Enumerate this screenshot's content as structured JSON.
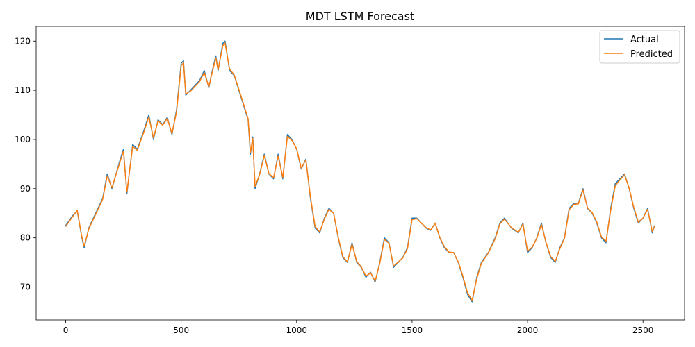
{
  "chart_data": {
    "type": "line",
    "title": "MDT LSTM Forecast",
    "xlabel": "",
    "ylabel": "",
    "xlim": [
      -128,
      2680
    ],
    "ylim": [
      63.3,
      123
    ],
    "x_ticks": [
      0,
      500,
      1000,
      1500,
      2000,
      2500
    ],
    "y_ticks": [
      70,
      80,
      90,
      100,
      110,
      120
    ],
    "grid": false,
    "legend_position": "top-right",
    "series": [
      {
        "name": "Actual",
        "color": "#1f77b4",
        "x": [
          0,
          30,
          50,
          70,
          80,
          100,
          130,
          160,
          180,
          200,
          230,
          250,
          265,
          290,
          310,
          340,
          360,
          380,
          400,
          420,
          440,
          460,
          480,
          500,
          510,
          520,
          540,
          560,
          580,
          600,
          620,
          630,
          650,
          660,
          680,
          690,
          710,
          730,
          750,
          770,
          790,
          800,
          810,
          820,
          840,
          860,
          880,
          900,
          920,
          940,
          960,
          980,
          1000,
          1020,
          1040,
          1060,
          1080,
          1100,
          1120,
          1140,
          1160,
          1180,
          1200,
          1220,
          1240,
          1260,
          1280,
          1300,
          1320,
          1340,
          1360,
          1380,
          1400,
          1420,
          1440,
          1460,
          1480,
          1500,
          1520,
          1540,
          1560,
          1580,
          1600,
          1620,
          1640,
          1660,
          1680,
          1700,
          1720,
          1740,
          1760,
          1780,
          1800,
          1830,
          1860,
          1880,
          1900,
          1930,
          1960,
          1980,
          2000,
          2020,
          2040,
          2060,
          2080,
          2100,
          2120,
          2140,
          2160,
          2180,
          2200,
          2220,
          2240,
          2260,
          2280,
          2300,
          2320,
          2340,
          2360,
          2380,
          2400,
          2420,
          2440,
          2460,
          2480,
          2500,
          2520,
          2540,
          2550
        ],
        "y": [
          82.5,
          84.5,
          85.5,
          80.0,
          78.0,
          82.0,
          85.0,
          88.0,
          93.0,
          90.0,
          95.0,
          98.0,
          89.0,
          99.0,
          98.0,
          102.0,
          105.0,
          100.0,
          104.0,
          103.0,
          104.5,
          101.0,
          106.0,
          115.5,
          116.0,
          109.0,
          110.0,
          111.0,
          112.0,
          114.0,
          110.5,
          113.0,
          117.0,
          114.0,
          119.5,
          120.0,
          114.0,
          113.0,
          110.0,
          107.0,
          104.0,
          97.0,
          100.5,
          90.0,
          93.0,
          97.0,
          93.0,
          92.0,
          97.0,
          92.0,
          101.0,
          100.0,
          98.0,
          94.0,
          96.0,
          88.0,
          82.0,
          81.0,
          84.0,
          86.0,
          85.0,
          80.0,
          76.0,
          75.0,
          79.0,
          75.0,
          74.0,
          72.0,
          73.0,
          71.0,
          75.0,
          80.0,
          79.0,
          74.0,
          75.0,
          76.0,
          78.0,
          84.0,
          84.0,
          83.0,
          82.0,
          81.5,
          83.0,
          80.0,
          78.0,
          77.0,
          77.0,
          75.0,
          72.0,
          68.5,
          67.0,
          72.0,
          75.0,
          77.0,
          80.0,
          83.0,
          84.0,
          82.0,
          81.0,
          83.0,
          77.0,
          78.0,
          80.0,
          83.0,
          79.0,
          76.0,
          75.0,
          78.0,
          80.0,
          86.0,
          87.0,
          87.0,
          90.0,
          86.0,
          85.0,
          83.0,
          80.0,
          79.0,
          86.0,
          91.0,
          92.0,
          93.0,
          90.0,
          86.0,
          83.0,
          84.0,
          86.0,
          81.0,
          82.5
        ]
      },
      {
        "name": "Predicted",
        "color": "#ff7f0e",
        "x": [
          0,
          30,
          50,
          70,
          80,
          100,
          130,
          160,
          180,
          200,
          230,
          250,
          265,
          290,
          310,
          340,
          360,
          380,
          400,
          420,
          440,
          460,
          480,
          500,
          510,
          520,
          540,
          560,
          580,
          600,
          620,
          630,
          650,
          660,
          680,
          690,
          710,
          730,
          750,
          770,
          790,
          800,
          810,
          820,
          840,
          860,
          880,
          900,
          920,
          940,
          960,
          980,
          1000,
          1020,
          1040,
          1060,
          1080,
          1100,
          1120,
          1140,
          1160,
          1180,
          1200,
          1220,
          1240,
          1260,
          1280,
          1300,
          1320,
          1340,
          1360,
          1380,
          1400,
          1420,
          1440,
          1460,
          1480,
          1500,
          1520,
          1540,
          1560,
          1580,
          1600,
          1620,
          1640,
          1660,
          1680,
          1700,
          1720,
          1740,
          1760,
          1780,
          1800,
          1830,
          1860,
          1880,
          1900,
          1930,
          1960,
          1980,
          2000,
          2020,
          2040,
          2060,
          2080,
          2100,
          2120,
          2140,
          2160,
          2180,
          2200,
          2220,
          2240,
          2260,
          2280,
          2300,
          2320,
          2340,
          2360,
          2380,
          2400,
          2420,
          2440,
          2460,
          2480,
          2500,
          2520,
          2540,
          2550
        ],
        "y": [
          82.3,
          84.3,
          85.6,
          80.2,
          78.3,
          81.8,
          84.8,
          87.8,
          92.6,
          90.2,
          94.7,
          97.6,
          89.3,
          98.6,
          97.8,
          101.7,
          104.6,
          100.3,
          103.8,
          102.9,
          104.3,
          101.2,
          105.6,
          115.0,
          115.6,
          109.3,
          109.8,
          110.8,
          111.8,
          113.6,
          110.7,
          112.8,
          116.6,
          114.2,
          119.0,
          119.6,
          114.3,
          113.1,
          110.2,
          107.2,
          104.2,
          97.4,
          100.2,
          90.4,
          92.9,
          96.7,
          93.1,
          92.2,
          96.6,
          92.3,
          100.6,
          99.8,
          98.1,
          94.2,
          95.8,
          88.3,
          82.3,
          81.2,
          83.8,
          85.8,
          85.0,
          80.2,
          76.2,
          75.1,
          78.7,
          75.2,
          74.1,
          72.2,
          72.9,
          71.2,
          74.8,
          79.7,
          78.9,
          74.2,
          75.1,
          75.9,
          77.8,
          83.7,
          83.9,
          83.0,
          82.1,
          81.6,
          82.9,
          80.1,
          78.2,
          77.1,
          77.0,
          75.1,
          72.2,
          68.8,
          67.3,
          71.7,
          74.8,
          76.9,
          79.8,
          82.8,
          83.8,
          82.1,
          81.1,
          82.8,
          77.3,
          78.1,
          79.9,
          82.7,
          79.1,
          76.2,
          75.2,
          77.8,
          79.9,
          85.7,
          86.8,
          86.9,
          89.7,
          86.1,
          85.1,
          83.2,
          80.2,
          79.3,
          85.6,
          90.6,
          91.8,
          92.8,
          90.1,
          86.2,
          83.2,
          84.0,
          85.8,
          81.3,
          82.3
        ]
      }
    ]
  }
}
